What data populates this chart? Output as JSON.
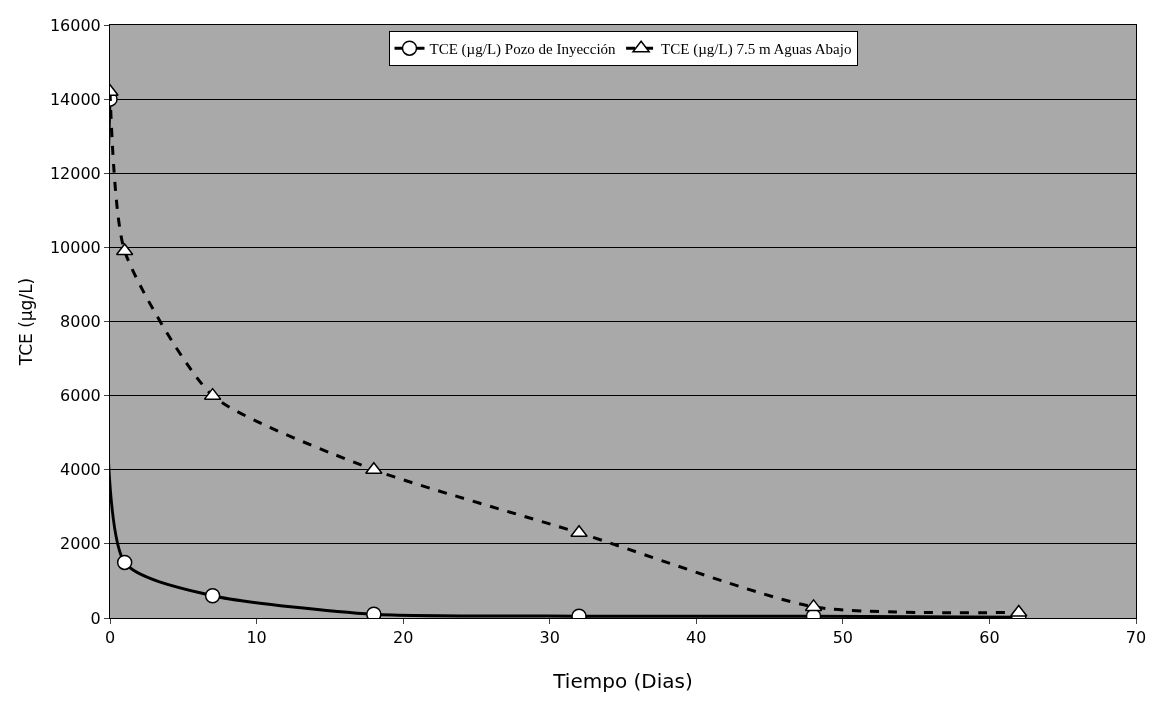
{
  "chart_data": {
    "type": "line",
    "xlabel": "Tiempo (Dias)",
    "ylabel": "TCE (µg/L)",
    "xlim": [
      0,
      70
    ],
    "xticks": [
      0,
      10,
      20,
      30,
      40,
      50,
      60,
      70
    ],
    "ylim": [
      0,
      16000
    ],
    "yticks": [
      0,
      2000,
      4000,
      6000,
      8000,
      10000,
      12000,
      14000,
      16000
    ],
    "grid": "y",
    "legend": "top",
    "series": [
      {
        "name": "TCE (µg/L) Pozo de Inyección",
        "color": "#000000",
        "marker": "circle",
        "line_style": "solid",
        "x": [
          0,
          1,
          7,
          18,
          32,
          48,
          62
        ],
        "values": [
          14000,
          1500,
          600,
          100,
          50,
          50,
          20
        ]
      },
      {
        "name": "TCE (µg/L) 7.5 m Aguas Abajo",
        "color": "#000000",
        "marker": "triangle",
        "line_style": "dashed",
        "x": [
          0,
          1,
          7,
          18,
          32,
          48,
          62
        ],
        "values": [
          14200,
          9900,
          6000,
          4000,
          2300,
          300,
          150
        ]
      }
    ]
  }
}
